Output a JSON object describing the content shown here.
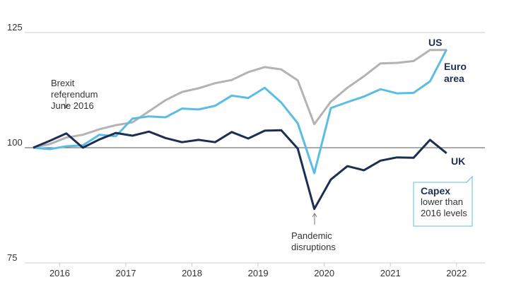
{
  "chart_data": {
    "type": "line",
    "x": [
      2015.6,
      2015.85,
      2016.1,
      2016.35,
      2016.6,
      2016.85,
      2017.1,
      2017.35,
      2017.6,
      2017.85,
      2018.1,
      2018.35,
      2018.6,
      2018.85,
      2019.1,
      2019.35,
      2019.6,
      2019.85,
      2020.1,
      2020.35,
      2020.6,
      2020.85,
      2021.1,
      2021.35,
      2021.6,
      2021.85
    ],
    "series": [
      {
        "name": "US",
        "color": "#b3b3b3",
        "values": [
          100,
          100.8,
          102.2,
          102.8,
          104.0,
          104.9,
          105.5,
          107.9,
          110.3,
          112.1,
          112.9,
          114.0,
          114.7,
          116.4,
          117.5,
          117.0,
          114.6,
          105.1,
          110.0,
          113.0,
          115.5,
          118.3,
          118.4,
          118.8,
          121.2,
          121.2
        ]
      },
      {
        "name": "Euro area",
        "color": "#5bbde4",
        "values": [
          100,
          99.7,
          100.3,
          100.5,
          102.8,
          102.5,
          106.3,
          106.8,
          106.6,
          108.5,
          108.3,
          109.1,
          111.3,
          110.8,
          113.0,
          109.8,
          105.3,
          94.5,
          108.6,
          109.9,
          111.1,
          112.7,
          111.8,
          111.9,
          114.4,
          121.3
        ]
      },
      {
        "name": "UK",
        "color": "#1b2f52",
        "values": [
          100,
          101.5,
          103.1,
          100,
          101.8,
          103.2,
          102.6,
          103.5,
          102.1,
          101.2,
          101.7,
          101.2,
          103.4,
          102.0,
          103.7,
          103.8,
          99.8,
          86.7,
          93.1,
          96.0,
          95.1,
          97.2,
          97.9,
          97.8,
          101.7,
          98.8
        ]
      }
    ],
    "xlim": [
      2015.6,
      2022.43
    ],
    "xticks": [
      2016,
      2017,
      2018,
      2019,
      2020,
      2021,
      2022
    ],
    "ylim": [
      75,
      125
    ],
    "yticks": [
      75,
      100,
      125
    ],
    "annotations": [
      {
        "lines": [
          "Brexit",
          "referendum",
          "June 2016"
        ]
      },
      {
        "lines": [
          "Pandemic",
          "disruptions"
        ]
      },
      {
        "lines": [
          "Capex",
          "lower than",
          "2016 levels"
        ]
      }
    ]
  }
}
